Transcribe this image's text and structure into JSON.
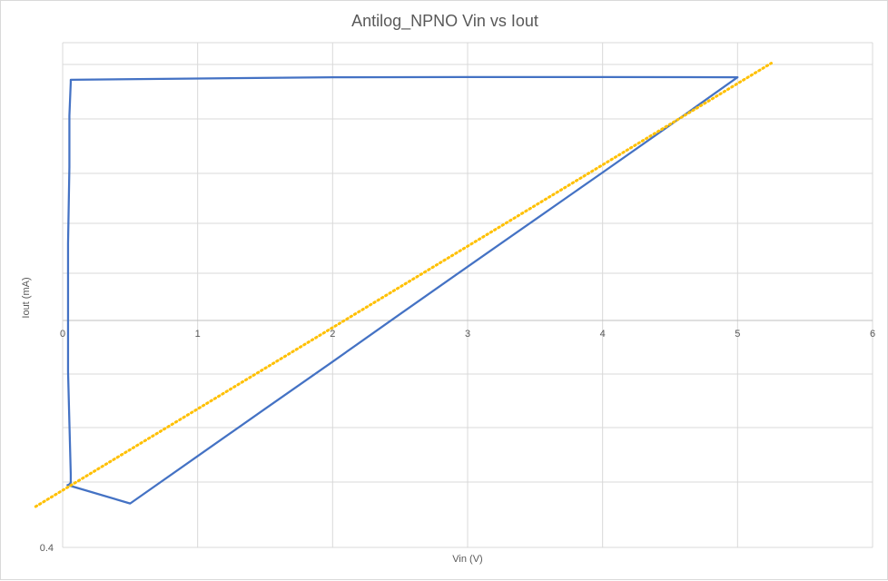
{
  "chart_data": {
    "type": "line",
    "title": "Antilog_NPNO Vin vs Iout",
    "xlabel": "Vin (V)",
    "ylabel": "Iout (mA)",
    "xlim": [
      0,
      6
    ],
    "x_ticks": [
      "0",
      "1",
      "2",
      "3",
      "4",
      "5",
      "6"
    ],
    "y_tick_labels": [
      {
        "value": 0.4,
        "label": "0.4"
      }
    ],
    "grid": true,
    "legend": "none",
    "series": [
      {
        "color": "#4472c4",
        "style": "solid",
        "points": [
          [
            0.03,
            -0.645
          ],
          [
            0.05,
            -0.64
          ],
          [
            0.06,
            -0.633
          ],
          [
            0.06,
            -0.6
          ],
          [
            0.05,
            -0.4
          ],
          [
            0.04,
            -0.2
          ],
          [
            0.04,
            0.0
          ],
          [
            0.04,
            0.3
          ],
          [
            0.05,
            0.6
          ],
          [
            0.05,
            0.8
          ],
          [
            0.06,
            0.93
          ],
          [
            0.06,
            0.94
          ],
          [
            0.06,
            0.94
          ],
          [
            1.0,
            0.945
          ],
          [
            2.0,
            0.95
          ],
          [
            3.0,
            0.951
          ],
          [
            4.0,
            0.951
          ],
          [
            5.0,
            0.95
          ],
          [
            5.0,
            0.95
          ],
          [
            4.5,
            0.763
          ],
          [
            4.0,
            0.578
          ],
          [
            3.5,
            0.394
          ],
          [
            3.0,
            0.21
          ],
          [
            2.5,
            0.025
          ],
          [
            2.0,
            -0.161
          ],
          [
            1.5,
            -0.345
          ],
          [
            1.0,
            -0.53
          ],
          [
            0.5,
            -0.715
          ],
          [
            0.05,
            -0.645
          ]
        ]
      },
      {
        "color": "#ffc000",
        "style": "dotted",
        "points": [
          [
            -0.2,
            -0.727
          ],
          [
            5.25,
            1.005
          ]
        ]
      }
    ]
  }
}
